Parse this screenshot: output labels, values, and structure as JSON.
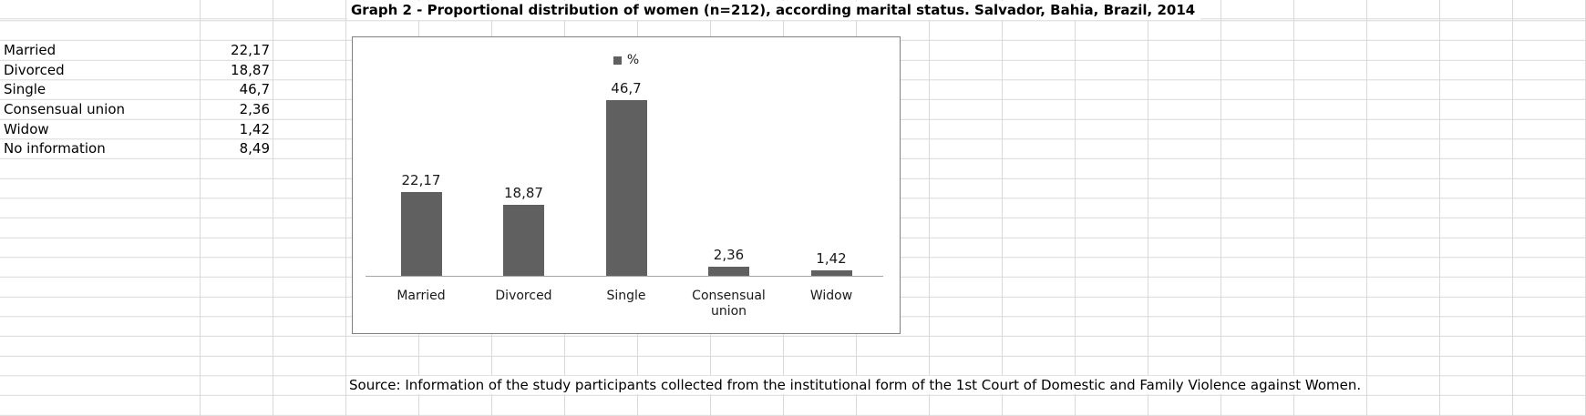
{
  "sheet": {
    "title": "Graph 2 - Proportional distribution of women (n=212), according marital status. Salvador, Bahia, Brazil, 2014",
    "source_note": "Source: Information of the study participants collected from the institutional form of the 1st Court of Domestic and Family Violence against Women."
  },
  "table": {
    "rows": [
      {
        "label": "Married",
        "value": "22,17"
      },
      {
        "label": "Divorced",
        "value": "18,87"
      },
      {
        "label": "Single",
        "value": "46,7"
      },
      {
        "label": "Consensual union",
        "value": "2,36"
      },
      {
        "label": "Widow",
        "value": "1,42"
      },
      {
        "label": "No information",
        "value": "8,49"
      }
    ]
  },
  "chart_data": {
    "type": "bar",
    "title": "Graph 2 - Proportional distribution of women (n=212), according marital status. Salvador, Bahia, Brazil, 2014",
    "categories": [
      "Married",
      "Divorced",
      "Single",
      "Consensual union",
      "Widow"
    ],
    "values": [
      22.17,
      18.87,
      46.7,
      2.36,
      1.42
    ],
    "value_labels": [
      "22,17",
      "18,87",
      "46,7",
      "2,36",
      "1,42"
    ],
    "legend_label": "%",
    "legend_position": "top-center",
    "bar_color": "#606060",
    "axis_color": "#a6a6a6",
    "grid": false,
    "y_axis_visible": false,
    "ylim": [
      0,
      50
    ]
  },
  "colors": {
    "gridline": "#d9d9d9",
    "chart_border": "#808080",
    "text": "#000000"
  }
}
